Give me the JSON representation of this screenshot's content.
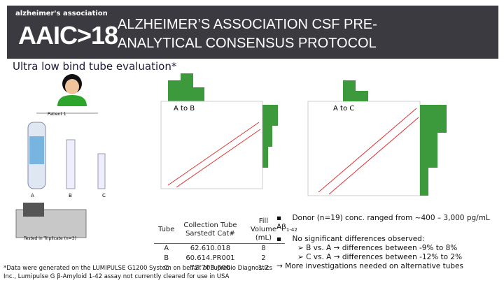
{
  "header": {
    "logo_top": "alzheimer's association",
    "logo_main": "AAIC",
    "logo_sep": ">",
    "logo_year": "18",
    "title_line1": "ALZHEIMER’S ASSOCIATION CSF PRE-",
    "title_line2": "ANALYTICAL CONSENSUS PROTOCOL"
  },
  "subtitle": "Ultra low bind tube evaluation*",
  "diagram": {
    "patient": "Patient 1",
    "tubes": [
      "A",
      "B",
      "C"
    ],
    "caption": "Tested in Triplicate (n=3)"
  },
  "plots": [
    "A to B",
    "A to C"
  ],
  "table": {
    "header": [
      "Tube",
      "Collection Tube Sarstedt Cat#",
      "Fill Volume (mL)"
    ],
    "rows": [
      [
        "A",
        "62.610.018",
        "8"
      ],
      [
        "B",
        "60.614.PR001",
        "2"
      ],
      [
        "C",
        "72.703.600",
        "1.2"
      ]
    ]
  },
  "bullets": {
    "donor": "Donor (n=19) conc. ranged from ~400 – 3,000 pg/mL Aβ",
    "donor_sub": "1-42",
    "nodiff": "No significant differences observed:",
    "sub": [
      "B vs. A → differences between -9% to 8%",
      "C vs. A → differences between -12% to 2%"
    ],
    "more": "→ More investigations needed on alternative tubes"
  },
  "footnote": "*Data were generated on the LUMIPULSE G1200 System on behalf of Fujirebio Diagnostics Inc., Lumipulse G β-Amyloid 1-42 assay not currently cleared for use in USA"
}
